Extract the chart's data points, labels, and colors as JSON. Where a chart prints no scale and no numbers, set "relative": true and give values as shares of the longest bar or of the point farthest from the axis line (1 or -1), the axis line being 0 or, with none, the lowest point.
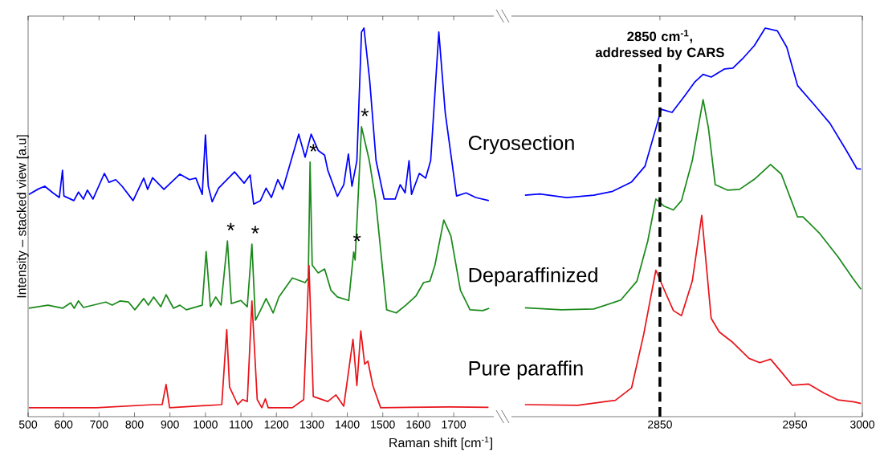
{
  "chart_data": [
    {
      "type": "line",
      "relative": true,
      "xlabel": "Raman shift [cm$^{-1}$]",
      "ylabel": "Intensity – stacked view [a.u]",
      "xlim": [
        500,
        1813
      ],
      "xticks": [
        500,
        600,
        700,
        800,
        900,
        1000,
        1100,
        1200,
        1300,
        1400,
        1500,
        1600,
        1700
      ],
      "series": [
        {
          "name": "Cryosection",
          "color": "#0000ff",
          "x": [
            502,
            529,
            547,
            570,
            588,
            597,
            601,
            629,
            642,
            656,
            667,
            683,
            715,
            728,
            747,
            765,
            796,
            826,
            837,
            851,
            883,
            928,
            955,
            973,
            991,
            1000,
            1008,
            1019,
            1037,
            1082,
            1109,
            1126,
            1136,
            1155,
            1171,
            1186,
            1204,
            1218,
            1263,
            1281,
            1298,
            1318,
            1336,
            1345,
            1372,
            1390,
            1403,
            1413,
            1427,
            1440,
            1447,
            1463,
            1481,
            1504,
            1535,
            1549,
            1563,
            1574,
            1581,
            1603,
            1621,
            1635,
            1658,
            1676,
            1708,
            1735,
            1762,
            1799
          ],
          "values": [
            0.572,
            0.586,
            0.593,
            0.576,
            0.564,
            0.634,
            0.568,
            0.556,
            0.578,
            0.56,
            0.583,
            0.56,
            0.626,
            0.603,
            0.61,
            0.593,
            0.556,
            0.614,
            0.585,
            0.615,
            0.585,
            0.624,
            0.61,
            0.614,
            0.572,
            0.725,
            0.593,
            0.553,
            0.588,
            0.63,
            0.601,
            0.622,
            0.547,
            0.556,
            0.588,
            0.564,
            0.61,
            0.585,
            0.727,
            0.668,
            0.727,
            0.685,
            0.673,
            0.634,
            0.567,
            0.597,
            0.676,
            0.593,
            0.659,
            0.99,
            1.0,
            0.866,
            0.659,
            0.56,
            0.56,
            0.597,
            0.576,
            0.659,
            0.572,
            0.626,
            0.614,
            0.659,
            0.99,
            0.783,
            0.568,
            0.576,
            0.564,
            0.556
          ]
        },
        {
          "name": "Deparaffinized",
          "color": "#1a8a1a",
          "x": [
            502,
            556,
            597,
            620,
            630,
            642,
            656,
            719,
            737,
            760,
            783,
            801,
            826,
            839,
            854,
            874,
            889,
            910,
            928,
            946,
            991,
            1002,
            1014,
            1029,
            1044,
            1062,
            1073,
            1100,
            1118,
            1131,
            1141,
            1156,
            1171,
            1191,
            1207,
            1245,
            1281,
            1290,
            1295,
            1301,
            1318,
            1336,
            1354,
            1372,
            1404,
            1418,
            1422,
            1440,
            1462,
            1480,
            1511,
            1538,
            1565,
            1593,
            1615,
            1633,
            1647,
            1672,
            1692,
            1719,
            1746,
            1782,
            1800
          ],
          "values": [
            0.279,
            0.287,
            0.279,
            0.293,
            0.279,
            0.298,
            0.281,
            0.295,
            0.287,
            0.298,
            0.295,
            0.275,
            0.304,
            0.287,
            0.308,
            0.283,
            0.314,
            0.279,
            0.287,
            0.275,
            0.287,
            0.425,
            0.283,
            0.308,
            0.287,
            0.452,
            0.291,
            0.299,
            0.283,
            0.444,
            0.248,
            0.275,
            0.304,
            0.267,
            0.308,
            0.357,
            0.345,
            0.357,
            0.655,
            0.39,
            0.37,
            0.38,
            0.325,
            0.308,
            0.299,
            0.424,
            0.403,
            0.746,
            0.659,
            0.556,
            0.275,
            0.267,
            0.287,
            0.31,
            0.345,
            0.349,
            0.39,
            0.506,
            0.465,
            0.325,
            0.275,
            0.273,
            0.279
          ]
        },
        {
          "name": "Pure paraffin",
          "color": "#e8141a",
          "x": [
            502,
            692,
            855,
            878,
            889,
            899,
            1046,
            1060,
            1068,
            1091,
            1105,
            1118,
            1131,
            1146,
            1159,
            1169,
            1177,
            1245,
            1277,
            1292,
            1304,
            1345,
            1368,
            1390,
            1416,
            1427,
            1438,
            1449,
            1458,
            1472,
            1494,
            1689,
            1798
          ],
          "values": [
            0.023,
            0.023,
            0.031,
            0.031,
            0.083,
            0.023,
            0.031,
            0.224,
            0.076,
            0.031,
            0.044,
            0.039,
            0.298,
            0.044,
            0.023,
            0.046,
            0.023,
            0.023,
            0.044,
            0.389,
            0.052,
            0.039,
            0.056,
            0.027,
            0.199,
            0.08,
            0.221,
            0.135,
            0.143,
            0.08,
            0.023,
            0.025,
            0.024
          ]
        }
      ],
      "annotations": [
        {
          "text": "*",
          "x": 1062,
          "y": 0.452
        },
        {
          "text": "*",
          "x": 1131,
          "y": 0.444
        },
        {
          "text": "*",
          "x": 1295,
          "y": 0.655
        },
        {
          "text": "*",
          "x": 1440,
          "y": 0.746
        },
        {
          "text": "*",
          "x": 1418,
          "y": 0.424
        }
      ]
    },
    {
      "type": "line",
      "relative": true,
      "xlim": [
        2740,
        3000
      ],
      "xticks": [
        2850,
        2950,
        3000
      ],
      "series": [
        {
          "color": "#0000ff",
          "x": [
            2750,
            2761,
            2781,
            2801,
            2815,
            2829,
            2839,
            2847,
            2851,
            2859,
            2868,
            2876,
            2882,
            2888,
            2898,
            2904,
            2912,
            2920,
            2928,
            2937,
            2944,
            2952,
            2965,
            2976,
            2988,
            2996,
            2999
          ],
          "values": [
            0.57,
            0.573,
            0.564,
            0.57,
            0.58,
            0.604,
            0.645,
            0.742,
            0.791,
            0.783,
            0.824,
            0.862,
            0.881,
            0.874,
            0.895,
            0.897,
            0.924,
            0.955,
            1.0,
            0.993,
            0.951,
            0.852,
            0.8,
            0.755,
            0.686,
            0.638,
            0.637
          ]
        },
        {
          "color": "#1a8a1a",
          "x": [
            2750,
            2777,
            2801,
            2821,
            2833,
            2841,
            2847,
            2853,
            2860,
            2866,
            2874,
            2882,
            2886,
            2891,
            2900,
            2909,
            2920,
            2932,
            2940,
            2952,
            2956,
            2968,
            2982,
            2993,
            2999
          ],
          "values": [
            0.28,
            0.275,
            0.277,
            0.3,
            0.349,
            0.452,
            0.56,
            0.542,
            0.532,
            0.556,
            0.659,
            0.816,
            0.742,
            0.597,
            0.583,
            0.585,
            0.611,
            0.649,
            0.624,
            0.514,
            0.514,
            0.473,
            0.411,
            0.356,
            0.328
          ]
        },
        {
          "color": "#e8141a",
          "x": [
            2750,
            2789,
            2817,
            2829,
            2838,
            2847,
            2853,
            2860,
            2866,
            2874,
            2881,
            2888,
            2894,
            2904,
            2916,
            2924,
            2932,
            2940,
            2948,
            2960,
            2972,
            2982,
            2994,
            2999
          ],
          "values": [
            0.031,
            0.029,
            0.042,
            0.074,
            0.212,
            0.377,
            0.328,
            0.273,
            0.26,
            0.349,
            0.518,
            0.253,
            0.218,
            0.191,
            0.15,
            0.139,
            0.148,
            0.115,
            0.081,
            0.084,
            0.06,
            0.043,
            0.038,
            0.034
          ]
        }
      ],
      "ref_lines": [
        {
          "axis": "x",
          "value": 2850,
          "label": "2850 cm$^{-1}$, addressed by CARS",
          "color": "#000000",
          "line_style": "dashed"
        }
      ]
    }
  ]
}
